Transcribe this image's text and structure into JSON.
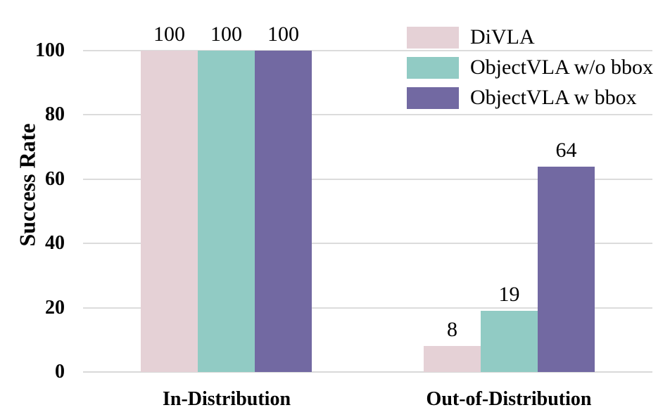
{
  "chart_data": {
    "type": "bar",
    "title": "",
    "ylabel": "Success Rate",
    "xlabel": "",
    "categories": [
      "In-Distribution",
      "Out-of-Distribution"
    ],
    "series": [
      {
        "name": "DiVLA",
        "color": "#e5d1d6",
        "values": [
          100,
          8
        ]
      },
      {
        "name": "ObjectVLA w/o bbox",
        "color": "#91cbc4",
        "values": [
          100,
          19
        ]
      },
      {
        "name": "ObjectVLA w bbox",
        "color": "#7269a2",
        "values": [
          100,
          64
        ]
      }
    ],
    "yticks": [
      0,
      20,
      40,
      60,
      80,
      100
    ],
    "ylim": [
      0,
      100
    ],
    "grid": true,
    "gridline_color": "#dcdcdc",
    "background_color": "#ffffff",
    "text_color": "#000000",
    "legend_position": "top-right",
    "value_labels": true
  }
}
